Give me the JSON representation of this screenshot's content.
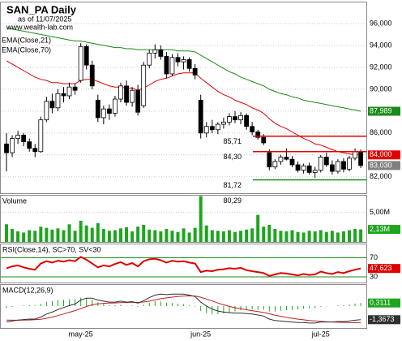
{
  "chart_data": [
    {
      "type": "candlestick",
      "title": "SAN_PA Daily",
      "subtitle": "as of 11/07/2025",
      "source": "www.wealth-lab.com",
      "categories": [
        null,
        null,
        null,
        null,
        null,
        null,
        null,
        null,
        null,
        null,
        null,
        null,
        null,
        "may-25",
        null,
        null,
        null,
        null,
        null,
        null,
        null,
        null,
        null,
        null,
        null,
        null,
        null,
        null,
        null,
        null,
        null,
        null,
        null,
        null,
        "jun-25",
        null,
        null,
        null,
        null,
        null,
        null,
        null,
        null,
        null,
        null,
        null,
        null,
        null,
        null,
        null,
        null,
        null,
        null,
        null,
        null,
        "jul-25",
        null,
        null,
        null,
        null,
        null,
        null,
        null
      ],
      "open": [
        85.0,
        84.2,
        85.5,
        85.8,
        85.2,
        84.6,
        84.3,
        87.2,
        88.9,
        88.3,
        89.6,
        89.4,
        90.2,
        90.8,
        93.9,
        92.2,
        89.0,
        87.4,
        88.2,
        87.8,
        89.1,
        90.3,
        88.8,
        89.9,
        88.5,
        92.2,
        93.3,
        93.6,
        93.0,
        91.4,
        92.9,
        92.5,
        92.7,
        91.9,
        89.0,
        86.0,
        86.6,
        86.3,
        86.8,
        87.0,
        87.5,
        87.2,
        87.6,
        86.6,
        86.1,
        85.6,
        84.2,
        82.9,
        83.4,
        83.8,
        83.6,
        83.1,
        82.6,
        83.0,
        82.4,
        82.6,
        83.8,
        83.1,
        82.5,
        83.4,
        82.7,
        83.7,
        84.3
      ],
      "high": [
        86.0,
        85.8,
        86.2,
        86.0,
        85.5,
        85.0,
        87.5,
        89.3,
        89.6,
        90.0,
        90.2,
        90.6,
        90.5,
        94.2,
        94.1,
        92.6,
        89.5,
        88.5,
        88.6,
        89.4,
        90.6,
        90.8,
        90.2,
        90.4,
        92.5,
        93.6,
        94.1,
        94.0,
        93.4,
        93.2,
        93.3,
        93.0,
        92.9,
        92.3,
        89.5,
        87.0,
        87.2,
        87.0,
        87.4,
        87.8,
        88.0,
        87.9,
        87.8,
        87.0,
        86.3,
        85.9,
        84.5,
        83.6,
        84.0,
        84.6,
        83.9,
        83.4,
        83.2,
        83.3,
        82.9,
        84.0,
        84.2,
        83.5,
        83.6,
        83.7,
        83.9,
        84.6,
        84.5
      ],
      "low": [
        82.5,
        83.8,
        85.0,
        84.8,
        84.3,
        83.8,
        84.2,
        87.0,
        87.8,
        88.0,
        88.8,
        89.1,
        89.5,
        90.6,
        91.8,
        90.0,
        87.0,
        86.8,
        87.2,
        87.5,
        88.8,
        88.5,
        88.4,
        87.6,
        88.3,
        91.9,
        92.8,
        92.7,
        91.0,
        91.2,
        92.1,
        91.8,
        91.6,
        90.9,
        85.5,
        85.6,
        86.0,
        85.9,
        86.4,
        86.7,
        86.9,
        86.8,
        86.3,
        85.8,
        85.4,
        84.9,
        82.6,
        82.7,
        83.1,
        83.5,
        82.9,
        82.4,
        82.3,
        82.2,
        81.9,
        82.4,
        82.9,
        82.2,
        82.3,
        82.4,
        82.5,
        83.5,
        82.8
      ],
      "close": [
        84.2,
        85.5,
        85.8,
        85.2,
        84.6,
        84.3,
        87.2,
        88.9,
        88.3,
        89.6,
        89.4,
        90.2,
        89.9,
        93.9,
        92.2,
        90.3,
        87.4,
        88.2,
        87.8,
        89.1,
        90.3,
        88.8,
        89.9,
        87.9,
        92.2,
        93.3,
        93.6,
        93.0,
        91.4,
        92.9,
        92.5,
        92.7,
        91.9,
        91.3,
        86.0,
        86.6,
        86.3,
        86.8,
        87.0,
        87.5,
        87.2,
        87.6,
        86.6,
        86.1,
        85.6,
        85.1,
        82.9,
        83.4,
        83.8,
        83.6,
        83.1,
        82.6,
        83.0,
        82.4,
        82.6,
        83.8,
        83.1,
        82.5,
        83.4,
        82.7,
        83.7,
        84.3,
        83.03
      ],
      "up_color": "#ffffff",
      "down_color": "#000000",
      "series": [
        {
          "name": "EMA(Close,21)",
          "color": "#e00000",
          "values": [
            92.6,
            92.3,
            92.0,
            91.7,
            91.4,
            91.1,
            90.9,
            90.8,
            90.6,
            90.6,
            90.5,
            90.5,
            90.5,
            90.8,
            90.9,
            90.9,
            90.7,
            90.5,
            90.3,
            90.2,
            90.2,
            90.1,
            90.1,
            89.9,
            90.1,
            90.4,
            90.7,
            90.9,
            91.0,
            91.2,
            91.4,
            91.5,
            91.5,
            91.5,
            91.0,
            90.6,
            90.2,
            89.8,
            89.5,
            89.3,
            89.0,
            88.8,
            88.6,
            88.3,
            88.1,
            87.8,
            87.3,
            86.9,
            86.6,
            86.4,
            86.1,
            85.8,
            85.5,
            85.3,
            85.0,
            84.9,
            84.7,
            84.5,
            84.3,
            84.2,
            84.1,
            84.0,
            84.0
          ]
        },
        {
          "name": "EMA(Close,70)",
          "color": "#1a8a1a",
          "values": [
            95.6,
            95.5,
            95.4,
            95.3,
            95.2,
            95.1,
            95.0,
            94.9,
            94.8,
            94.7,
            94.6,
            94.5,
            94.4,
            94.4,
            94.3,
            94.2,
            94.1,
            94.0,
            93.9,
            93.8,
            93.8,
            93.7,
            93.7,
            93.6,
            93.6,
            93.6,
            93.6,
            93.6,
            93.6,
            93.6,
            93.5,
            93.5,
            93.5,
            93.4,
            93.1,
            92.8,
            92.5,
            92.2,
            91.9,
            91.6,
            91.4,
            91.1,
            90.9,
            90.7,
            90.5,
            90.3,
            90.0,
            89.8,
            89.6,
            89.5,
            89.3,
            89.2,
            89.0,
            88.9,
            88.8,
            88.7,
            88.6,
            88.5,
            88.4,
            88.3,
            88.2,
            88.1,
            87.989
          ]
        }
      ],
      "ylim": [
        80.5,
        98
      ],
      "yticks": [
        {
          "value": 82,
          "label": "82,000"
        },
        {
          "value": 84,
          "label": "84,000"
        },
        {
          "value": 86,
          "label": "86,000"
        },
        {
          "value": 88,
          "label": "88,000"
        },
        {
          "value": 90,
          "label": "90,000"
        },
        {
          "value": 92,
          "label": "92,000"
        },
        {
          "value": 94,
          "label": "94,000"
        },
        {
          "value": 96,
          "label": "96,000"
        }
      ],
      "grid": true,
      "levels": [
        {
          "label": "85,71",
          "value": 85.71,
          "color": "#e00000"
        },
        {
          "label": "84,30",
          "value": 84.3,
          "color": "#e00000"
        },
        {
          "label": "81,72",
          "value": 81.72,
          "color": "#1a8a1a"
        },
        {
          "label": "80,29",
          "value": 80.29,
          "color": "#1a8a1a"
        }
      ],
      "annotations": [
        {
          "label": "84,000",
          "value": 84.0,
          "color": "#e00000"
        },
        {
          "label": "87,989",
          "value": 87.989,
          "color": "#1a8a1a"
        },
        {
          "label": "83,030",
          "value": 83.03,
          "color": "#808080"
        }
      ]
    },
    {
      "type": "bar",
      "title": "Volume",
      "color": "#1fa51f",
      "values": [
        3.0,
        2.2,
        1.8,
        1.6,
        2.0,
        1.9,
        2.6,
        2.4,
        2.1,
        2.3,
        2.0,
        3.0,
        1.9,
        3.6,
        2.8,
        2.4,
        3.2,
        2.2,
        1.9,
        2.0,
        2.3,
        2.5,
        1.8,
        2.6,
        2.9,
        2.1,
        2.0,
        1.8,
        2.2,
        1.9,
        1.7,
        2.3,
        1.6,
        2.4,
        7.8,
        2.8,
        2.0,
        1.9,
        1.8,
        2.0,
        1.7,
        1.9,
        2.1,
        2.3,
        4.6,
        2.6,
        2.9,
        2.2,
        1.9,
        1.8,
        2.0,
        1.7,
        1.6,
        1.9,
        1.8,
        2.0,
        1.7,
        1.9,
        1.6,
        1.8,
        2.0,
        2.2,
        2.13
      ],
      "ylim": [
        0,
        8
      ],
      "yticks": [
        {
          "value": 5,
          "label": "5,00M"
        }
      ],
      "grid": true,
      "annotations": [
        {
          "label": "2,13M",
          "value": 2.13,
          "color": "#1fa51f"
        }
      ]
    },
    {
      "type": "line",
      "title": "RSI(Close,14), SC>70, SV<30",
      "color": "#e00000",
      "values": [
        48,
        52,
        54,
        50,
        47,
        45,
        58,
        63,
        60,
        64,
        62,
        65,
        63,
        72,
        66,
        58,
        50,
        54,
        52,
        57,
        61,
        55,
        59,
        52,
        63,
        67,
        68,
        65,
        60,
        64,
        62,
        63,
        60,
        58,
        40,
        43,
        42,
        45,
        46,
        48,
        47,
        49,
        44,
        42,
        40,
        38,
        32,
        35,
        38,
        37,
        35,
        33,
        36,
        34,
        35,
        41,
        38,
        36,
        40,
        38,
        42,
        45,
        47.623
      ],
      "ylim": [
        18,
        100
      ],
      "yticks": [
        70,
        30
      ],
      "grid": true,
      "grid_color": "#1a8a1a",
      "annotations": [
        {
          "label": "47,623",
          "value": 47.623,
          "color": "#e00000"
        }
      ]
    },
    {
      "type": "line",
      "title": "MACD(12,26,9)",
      "color": "#303030",
      "values": [
        -1.6,
        -1.5,
        -1.4,
        -1.35,
        -1.3,
        -1.3,
        -1.1,
        -0.8,
        -0.6,
        -0.35,
        -0.15,
        0.05,
        0.2,
        0.6,
        0.8,
        0.8,
        0.6,
        0.5,
        0.4,
        0.4,
        0.5,
        0.4,
        0.45,
        0.3,
        0.55,
        0.85,
        1.1,
        1.2,
        1.15,
        1.2,
        1.2,
        1.2,
        1.1,
        0.95,
        0.4,
        0.0,
        -0.3,
        -0.5,
        -0.6,
        -0.65,
        -0.7,
        -0.7,
        -0.75,
        -0.8,
        -0.9,
        -1.0,
        -1.3,
        -1.45,
        -1.5,
        -1.55,
        -1.6,
        -1.65,
        -1.65,
        -1.7,
        -1.7,
        -1.6,
        -1.6,
        -1.6,
        -1.55,
        -1.55,
        -1.5,
        -1.42,
        -1.3673
      ],
      "signal": {
        "color": "#c02020",
        "values": [
          -1.4,
          -1.42,
          -1.42,
          -1.41,
          -1.39,
          -1.37,
          -1.32,
          -1.22,
          -1.1,
          -0.95,
          -0.79,
          -0.62,
          -0.46,
          -0.25,
          -0.04,
          0.13,
          0.22,
          0.28,
          0.3,
          0.32,
          0.36,
          0.37,
          0.39,
          0.37,
          0.41,
          0.5,
          0.62,
          0.74,
          0.82,
          0.9,
          0.96,
          1.01,
          1.03,
          1.01,
          0.89,
          0.71,
          0.51,
          0.31,
          0.13,
          -0.03,
          -0.16,
          -0.27,
          -0.37,
          -0.46,
          -0.55,
          -0.64,
          -0.77,
          -0.91,
          -1.03,
          -1.13,
          -1.22,
          -1.31,
          -1.38,
          -1.44,
          -1.49,
          -1.53,
          -1.57,
          -1.6,
          -1.62,
          -1.64,
          -1.66,
          -1.67,
          -1.6784
        ]
      },
      "histogram": {
        "color": "#1fa51f",
        "values": [
          -0.2,
          -0.08,
          0.02,
          0.06,
          0.09,
          0.07,
          0.22,
          0.42,
          0.5,
          0.6,
          0.64,
          0.67,
          0.66,
          0.85,
          0.84,
          0.67,
          0.38,
          0.22,
          0.1,
          0.08,
          0.14,
          0.03,
          0.06,
          -0.07,
          0.14,
          0.35,
          0.48,
          0.46,
          0.33,
          0.3,
          0.24,
          0.19,
          0.07,
          -0.06,
          -0.49,
          -0.71,
          -0.81,
          -0.81,
          -0.73,
          -0.62,
          -0.54,
          -0.43,
          -0.38,
          -0.34,
          -0.35,
          -0.36,
          -0.53,
          -0.54,
          -0.47,
          -0.42,
          -0.38,
          -0.34,
          -0.27,
          -0.26,
          -0.21,
          -0.07,
          -0.03,
          0.0,
          0.07,
          0.09,
          0.16,
          0.25,
          0.3111
        ]
      },
      "ylim": [
        -2.2,
        2.2
      ],
      "annotations": [
        {
          "label": "0,3111",
          "value": 0.3111,
          "color": "#1fa51f"
        },
        {
          "label": "-1,3673",
          "value": -1.3673,
          "color": "#303030"
        }
      ]
    }
  ]
}
